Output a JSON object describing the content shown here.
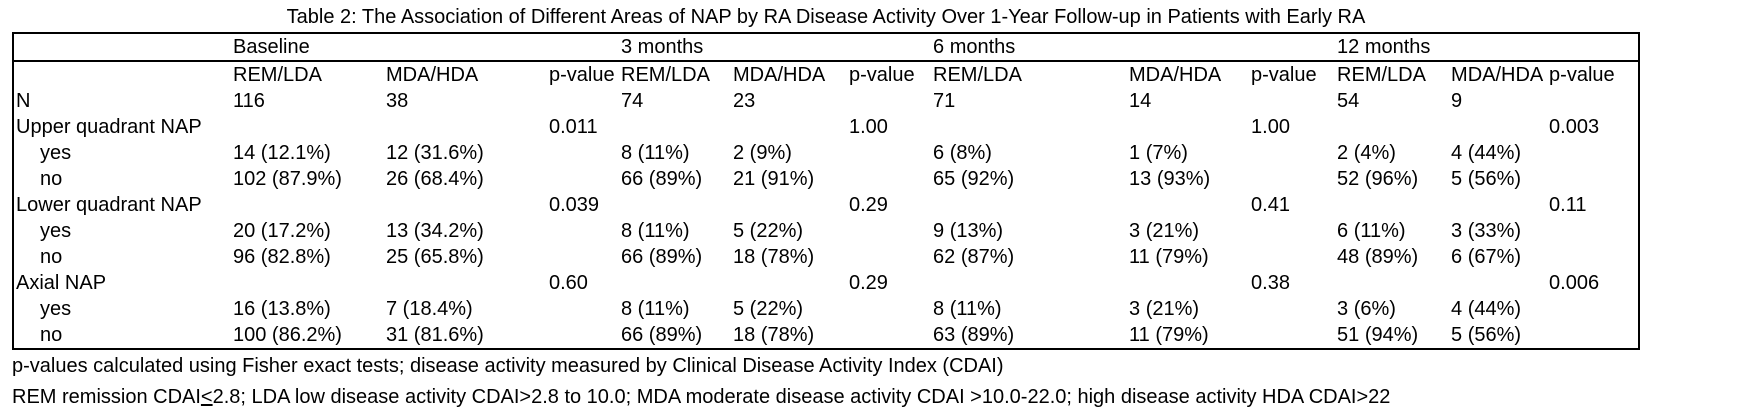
{
  "title": "Table 2: The Association of Different Areas of NAP by RA Disease Activity Over 1-Year Follow-up in Patients with Early RA",
  "table": {
    "groups": [
      {
        "label": "Baseline"
      },
      {
        "label": "3 months"
      },
      {
        "label": "6 months"
      },
      {
        "label": "12 months"
      }
    ],
    "sub_headers": [
      "REM/LDA",
      "MDA/HDA",
      "p-value"
    ],
    "rows": [
      {
        "label": "N",
        "indent": false,
        "cells": [
          "116",
          "38",
          "",
          "74",
          "23",
          "",
          "71",
          "14",
          "",
          "54",
          "9",
          ""
        ]
      },
      {
        "label": "Upper quadrant NAP",
        "indent": false,
        "cells": [
          "",
          "",
          "0.011",
          "",
          "",
          "1.00",
          "",
          "",
          "1.00",
          "",
          "",
          "0.003"
        ]
      },
      {
        "label": "yes",
        "indent": true,
        "cells": [
          "14 (12.1%)",
          "12 (31.6%)",
          "",
          "8 (11%)",
          "2 (9%)",
          "",
          "6 (8%)",
          "1 (7%)",
          "",
          "2 (4%)",
          "4 (44%)",
          ""
        ]
      },
      {
        "label": "no",
        "indent": true,
        "cells": [
          "102 (87.9%)",
          "26 (68.4%)",
          "",
          "66 (89%)",
          "21 (91%)",
          "",
          "65 (92%)",
          "13 (93%)",
          "",
          "52 (96%)",
          "5 (56%)",
          ""
        ]
      },
      {
        "label": "Lower quadrant NAP",
        "indent": false,
        "cells": [
          "",
          "",
          "0.039",
          "",
          "",
          "0.29",
          "",
          "",
          "0.41",
          "",
          "",
          "0.11"
        ]
      },
      {
        "label": "yes",
        "indent": true,
        "cells": [
          "20 (17.2%)",
          "13 (34.2%)",
          "",
          "8 (11%)",
          "5 (22%)",
          "",
          "9 (13%)",
          "3 (21%)",
          "",
          "6 (11%)",
          "3 (33%)",
          ""
        ]
      },
      {
        "label": "no",
        "indent": true,
        "cells": [
          "96 (82.8%)",
          "25 (65.8%)",
          "",
          "66 (89%)",
          "18 (78%)",
          "",
          "62 (87%)",
          "11 (79%)",
          "",
          "48 (89%)",
          "6 (67%)",
          ""
        ]
      },
      {
        "label": "Axial NAP",
        "indent": false,
        "cells": [
          "",
          "",
          "0.60",
          "",
          "",
          "0.29",
          "",
          "",
          "0.38",
          "",
          "",
          "0.006"
        ]
      },
      {
        "label": "yes",
        "indent": true,
        "cells": [
          "16 (13.8%)",
          "7 (18.4%)",
          "",
          "8 (11%)",
          "5 (22%)",
          "",
          "8 (11%)",
          "3 (21%)",
          "",
          "3 (6%)",
          "4 (44%)",
          ""
        ]
      },
      {
        "label": "no",
        "indent": true,
        "cells": [
          "100 (86.2%)",
          "31 (81.6%)",
          "",
          "66 (89%)",
          "18 (78%)",
          "",
          "63 (89%)",
          "11 (79%)",
          "",
          "51 (94%)",
          "5 (56%)",
          ""
        ]
      }
    ]
  },
  "footnotes": {
    "line1": "p-values calculated using Fisher exact tests; disease activity measured by Clinical Disease Activity Index (CDAI)",
    "line2_pre": "REM remission CDAI",
    "line2_le": "<",
    "line2_post": "2.8; LDA low disease activity CDAI>2.8 to 10.0; MDA moderate disease activity CDAI >10.0-22.0; high disease activity HDA CDAI>22"
  }
}
